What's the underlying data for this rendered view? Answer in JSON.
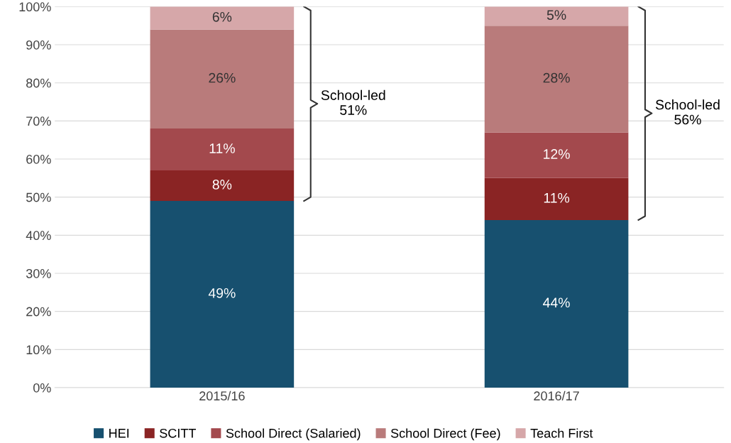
{
  "chart_data": {
    "type": "bar",
    "stacked": true,
    "categories": [
      "2015/16",
      "2016/17"
    ],
    "series": [
      {
        "name": "HEI",
        "color": "#17506f",
        "values": [
          49,
          44
        ],
        "value_labels": [
          "49%",
          "44%"
        ]
      },
      {
        "name": "SCITT",
        "color": "#8a2424",
        "values": [
          8,
          11
        ],
        "value_labels": [
          "8%",
          "11%"
        ]
      },
      {
        "name": "School Direct (Salaried)",
        "color": "#a3494d",
        "values": [
          11,
          12
        ],
        "value_labels": [
          "11%",
          "12%"
        ]
      },
      {
        "name": "School Direct (Fee)",
        "color": "#b97b7b",
        "values": [
          26,
          28
        ],
        "value_labels": [
          "26%",
          "28%"
        ]
      },
      {
        "name": "Teach First",
        "color": "#d6a7a9",
        "values": [
          6,
          5
        ],
        "value_labels": [
          "6%",
          "5%"
        ]
      }
    ],
    "ylim": [
      0,
      100
    ],
    "yticks": [
      {
        "value": 0,
        "label": "0%"
      },
      {
        "value": 10,
        "label": "10%"
      },
      {
        "value": 20,
        "label": "20%"
      },
      {
        "value": 30,
        "label": "30%"
      },
      {
        "value": 40,
        "label": "40%"
      },
      {
        "value": 50,
        "label": "50%"
      },
      {
        "value": 60,
        "label": "60%"
      },
      {
        "value": 70,
        "label": "70%"
      },
      {
        "value": 80,
        "label": "80%"
      },
      {
        "value": 90,
        "label": "90%"
      },
      {
        "value": 100,
        "label": "100%"
      }
    ],
    "grid": "y",
    "legend": "bottom",
    "annotations": [
      "School-led\n51%",
      "School-led\n56%"
    ]
  }
}
